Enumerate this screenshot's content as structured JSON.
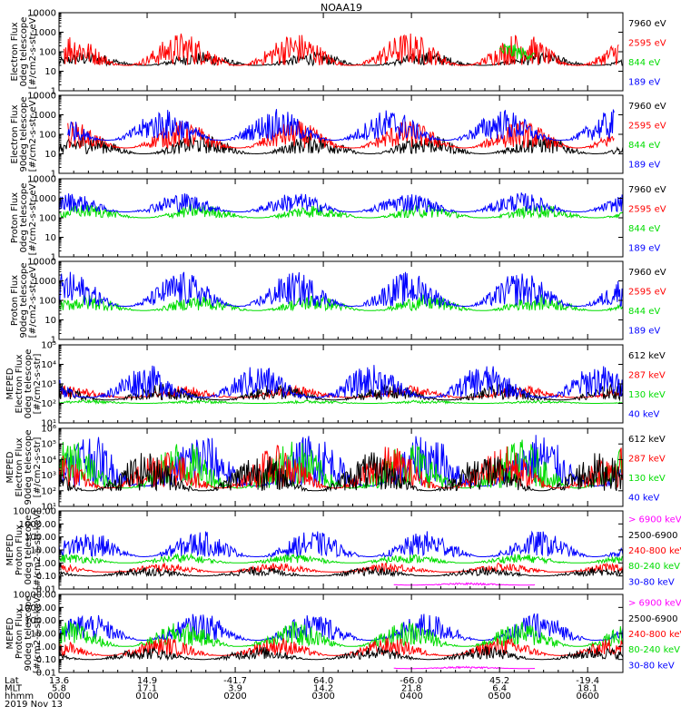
{
  "title": "NOAA19",
  "footer": {
    "rows": [
      {
        "label": "Lat",
        "values": [
          "13.6",
          "14.9",
          "-41.7",
          "64.0",
          "-66.0",
          "45.2",
          "-19.4"
        ]
      },
      {
        "label": "MLT",
        "values": [
          "5.8",
          "17.1",
          "3.9",
          "14.2",
          "21.8",
          "6.4",
          "18.1"
        ]
      },
      {
        "label": "hhmm",
        "values": [
          "0000",
          "0100",
          "0200",
          "0300",
          "0400",
          "0500",
          "0600"
        ]
      }
    ],
    "date": "2019 Nov 13"
  },
  "chart_data": [
    {
      "type": "line",
      "ylabel": [
        "Electron Flux",
        "0deg telescope",
        "[#/cm2-s-str-eV]"
      ],
      "yscale": "log",
      "ylim": [
        1,
        10000
      ],
      "ticks": [
        "1",
        "10",
        "100",
        "1000",
        "10000"
      ],
      "series": [
        {
          "name": "7960 eV",
          "color": "#000000"
        },
        {
          "name": "2595 eV",
          "color": "#ff0000"
        },
        {
          "name": "844 eV",
          "color": "#00dd00"
        },
        {
          "name": "189 eV",
          "color": "#0000ff"
        }
      ],
      "x_hours": [
        0,
        6.4
      ],
      "segments": [
        {
          "series": "7960 eV",
          "from": 0.0,
          "to": 6.4,
          "base": 20,
          "peak": 100
        },
        {
          "series": "2595 eV",
          "from": 0.05,
          "to": 6.35,
          "base": 20,
          "peak": 1000
        },
        {
          "series": "844 eV",
          "from": 5.0,
          "to": 5.4,
          "base": 40,
          "peak": 300
        }
      ]
    },
    {
      "type": "line",
      "ylabel": [
        "Electron Flux",
        "90deg telescope",
        "[#/cm2-s-str-eV]"
      ],
      "yscale": "log",
      "ylim": [
        1,
        10000
      ],
      "ticks": [
        "1",
        "10",
        "100",
        "1000",
        "10000"
      ],
      "series": [
        {
          "name": "7960 eV",
          "color": "#000000"
        },
        {
          "name": "2595 eV",
          "color": "#ff0000"
        },
        {
          "name": "844 eV",
          "color": "#00dd00"
        },
        {
          "name": "189 eV",
          "color": "#0000ff"
        }
      ],
      "x_hours": [
        0,
        6.4
      ],
      "segments": [
        {
          "series": "7960 eV",
          "from": 0.0,
          "to": 6.4,
          "base": 10,
          "peak": 100
        },
        {
          "series": "2595 eV",
          "from": 0.1,
          "to": 6.3,
          "base": 20,
          "peak": 500
        },
        {
          "series": "189 eV",
          "from": 0.1,
          "to": 6.3,
          "base": 50,
          "peak": 2000
        }
      ]
    },
    {
      "type": "line",
      "ylabel": [
        "Proton Flux",
        "0deg telescope",
        "[#/cm2-s-str-eV]"
      ],
      "yscale": "log",
      "ylim": [
        1,
        10000
      ],
      "ticks": [
        "1",
        "10",
        "100",
        "1000",
        "10000"
      ],
      "series": [
        {
          "name": "7960 eV",
          "color": "#000000"
        },
        {
          "name": "2595 eV",
          "color": "#ff0000"
        },
        {
          "name": "844 eV",
          "color": "#00dd00"
        },
        {
          "name": "189 eV",
          "color": "#0000ff"
        }
      ],
      "x_hours": [
        0,
        6.4
      ],
      "segments": [
        {
          "series": "844 eV",
          "from": 0.0,
          "to": 6.4,
          "base": 100,
          "peak": 500
        },
        {
          "series": "189 eV",
          "from": 0.0,
          "to": 6.4,
          "base": 200,
          "peak": 2000
        }
      ]
    },
    {
      "type": "line",
      "ylabel": [
        "Proton Flux",
        "90deg telescope",
        "[#/cm2-s-str-eV]"
      ],
      "yscale": "log",
      "ylim": [
        1,
        10000
      ],
      "ticks": [
        "1",
        "10",
        "100",
        "1000",
        "10000"
      ],
      "series": [
        {
          "name": "7960 eV",
          "color": "#000000"
        },
        {
          "name": "2595 eV",
          "color": "#ff0000"
        },
        {
          "name": "844 eV",
          "color": "#00dd00"
        },
        {
          "name": "189 eV",
          "color": "#0000ff"
        }
      ],
      "x_hours": [
        0,
        6.4
      ],
      "segments": [
        {
          "series": "844 eV",
          "from": 0.0,
          "to": 6.4,
          "base": 30,
          "peak": 200
        },
        {
          "series": "189 eV",
          "from": 0.0,
          "to": 6.4,
          "base": 50,
          "peak": 3000
        }
      ]
    },
    {
      "type": "line",
      "ylabel": [
        "MEPED",
        "Electron Flux",
        "0deg telescope",
        "[#/cm2-s-str]"
      ],
      "yscale": "log",
      "ylim": [
        10,
        100000
      ],
      "ticks": [
        "10¹",
        "10²",
        "10³",
        "10⁴",
        "10⁵"
      ],
      "series": [
        {
          "name": "612 keV",
          "color": "#000000"
        },
        {
          "name": "287 keV",
          "color": "#ff0000"
        },
        {
          "name": "130 keV",
          "color": "#00dd00"
        },
        {
          "name": "40 keV",
          "color": "#0000ff"
        }
      ],
      "x_hours": [
        0,
        6.4
      ],
      "segments": [
        {
          "series": "130 keV",
          "from": 0.0,
          "to": 6.4,
          "base": 100,
          "peak": 150
        },
        {
          "series": "287 keV",
          "from": 0.0,
          "to": 6.4,
          "base": 200,
          "peak": 800
        },
        {
          "series": "612 keV",
          "from": 0.0,
          "to": 6.4,
          "base": 150,
          "peak": 1000
        },
        {
          "series": "40 keV",
          "from": 0.0,
          "to": 6.4,
          "base": 200,
          "peak": 10000
        }
      ]
    },
    {
      "type": "line",
      "ylabel": [
        "MEPED",
        "Electron Flux",
        "90deg telescope",
        "[#/cm2-s-str]"
      ],
      "yscale": "log",
      "ylim": [
        10,
        1000000
      ],
      "ticks": [
        "10¹",
        "10²",
        "10³",
        "10⁴",
        "10⁵",
        "10⁶"
      ],
      "series": [
        {
          "name": "612 keV",
          "color": "#000000"
        },
        {
          "name": "287 keV",
          "color": "#ff0000"
        },
        {
          "name": "130 keV",
          "color": "#00dd00"
        },
        {
          "name": "40 keV",
          "color": "#0000ff"
        }
      ],
      "x_hours": [
        0,
        6.4
      ],
      "segments": [
        {
          "series": "40 keV",
          "from": 0.0,
          "to": 6.4,
          "base": 200,
          "peak": 600000
        },
        {
          "series": "130 keV",
          "from": 0.0,
          "to": 6.4,
          "base": 150,
          "peak": 200000
        },
        {
          "series": "287 keV",
          "from": 0.0,
          "to": 6.4,
          "base": 150,
          "peak": 80000
        },
        {
          "series": "612 keV",
          "from": 0.0,
          "to": 6.4,
          "base": 100,
          "peak": 30000
        }
      ]
    },
    {
      "type": "line",
      "ylabel": [
        "MEPED",
        "Proton Flux",
        "0deg telescope",
        "[#/cm2-s-str-keV]"
      ],
      "yscale": "log",
      "ylim": [
        0.01,
        10000
      ],
      "ticks": [
        "0.01",
        "0.10",
        "1.00",
        "10.00",
        "100.00",
        "1000.00",
        "10000.00"
      ],
      "series": [
        {
          "name": "> 6900 keV",
          "color": "#ff00ff"
        },
        {
          "name": "2500-6900 keV",
          "color": "#000000"
        },
        {
          "name": "240-800 keV",
          "color": "#ff0000"
        },
        {
          "name": "80-240 keV",
          "color": "#00dd00"
        },
        {
          "name": "30-80 keV",
          "color": "#0000ff"
        }
      ],
      "x_hours": [
        0,
        6.4
      ],
      "segments": [
        {
          "series": "30-80 keV",
          "from": 0.0,
          "to": 6.4,
          "base": 3,
          "peak": 300
        },
        {
          "series": "80-240 keV",
          "from": 0.0,
          "to": 6.4,
          "base": 1,
          "peak": 5
        },
        {
          "series": "240-800 keV",
          "from": 0.0,
          "to": 6.4,
          "base": 0.2,
          "peak": 1
        },
        {
          "series": "2500-6900 keV",
          "from": 0.0,
          "to": 6.4,
          "base": 0.1,
          "peak": 0.5
        },
        {
          "series": "> 6900 keV",
          "from": 3.8,
          "to": 5.4,
          "base": 0.02,
          "peak": 0.03
        }
      ]
    },
    {
      "type": "line",
      "ylabel": [
        "MEPED",
        "Proton Flux",
        "90deg telescope",
        "[#/cm2-s-str-keV]"
      ],
      "yscale": "log",
      "ylim": [
        0.01,
        10000
      ],
      "ticks": [
        "0.01",
        "0.10",
        "1.00",
        "10.00",
        "100.00",
        "1000.00",
        "10000.00"
      ],
      "series": [
        {
          "name": "> 6900 keV",
          "color": "#ff00ff"
        },
        {
          "name": "2500-6900 keV",
          "color": "#000000"
        },
        {
          "name": "240-800 keV",
          "color": "#ff0000"
        },
        {
          "name": "80-240 keV",
          "color": "#00dd00"
        },
        {
          "name": "30-80 keV",
          "color": "#0000ff"
        }
      ],
      "x_hours": [
        0,
        6.4
      ],
      "segments": [
        {
          "series": "30-80 keV",
          "from": 0.0,
          "to": 6.4,
          "base": 3,
          "peak": 400
        },
        {
          "series": "80-240 keV",
          "from": 0.0,
          "to": 6.4,
          "base": 1,
          "peak": 80
        },
        {
          "series": "240-800 keV",
          "from": 0.0,
          "to": 6.4,
          "base": 0.2,
          "peak": 5
        },
        {
          "series": "2500-6900 keV",
          "from": 0.0,
          "to": 6.4,
          "base": 0.1,
          "peak": 1
        },
        {
          "series": "> 6900 keV",
          "from": 3.8,
          "to": 5.4,
          "base": 0.02,
          "peak": 0.03
        }
      ]
    }
  ]
}
